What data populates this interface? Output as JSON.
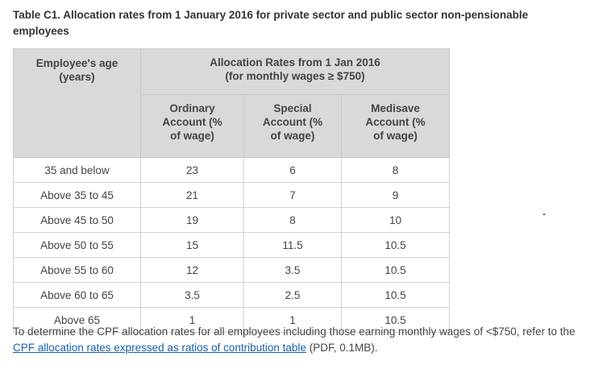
{
  "caption": "Table C1. Allocation rates from 1 January 2016 for private sector and public sector non-pensionable employees",
  "table": {
    "age_header": "Employee's age (years)",
    "group_header_line1": "Allocation Rates from 1 Jan 2016",
    "group_header_line2": "(for monthly wages ≥ $750)",
    "col_ordinary": "Ordinary Account (% of wage)",
    "col_special": "Special Account (% of wage)",
    "col_medisave": "Medisave Account (% of wage)",
    "rows": [
      {
        "age": "35 and below",
        "ordinary": "23",
        "special": "6",
        "medisave": "8"
      },
      {
        "age": "Above 35 to 45",
        "ordinary": "21",
        "special": "7",
        "medisave": "9"
      },
      {
        "age": "Above 45 to 50",
        "ordinary": "19",
        "special": "8",
        "medisave": "10"
      },
      {
        "age": "Above 50 to 55",
        "ordinary": "15",
        "special": "11.5",
        "medisave": "10.5"
      },
      {
        "age": "Above 55 to 60",
        "ordinary": "12",
        "special": "3.5",
        "medisave": "10.5"
      },
      {
        "age": "Above 60 to 65",
        "ordinary": "3.5",
        "special": "2.5",
        "medisave": "10.5"
      },
      {
        "age": "Above 65",
        "ordinary": "1",
        "special": "1",
        "medisave": "10.5"
      }
    ]
  },
  "note": {
    "before": "To determine the CPF allocation rates for all employees including those earning monthly wages of <$750, refer to the ",
    "link": "CPF allocation rates expressed as ratios of contribution table",
    "after": " (PDF, 0.1MB)."
  }
}
